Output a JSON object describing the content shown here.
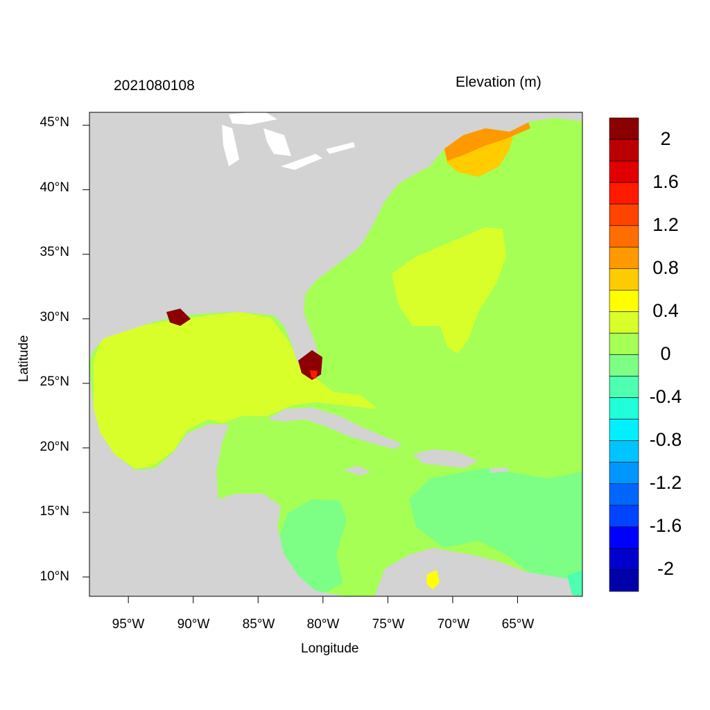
{
  "header": {
    "timestamp": "2021080108",
    "variable_label": "Elevation (m)"
  },
  "axes": {
    "xlabel": "Longitude",
    "ylabel": "Latitude",
    "x_ticks": [
      "95°W",
      "90°W",
      "85°W",
      "80°W",
      "75°W",
      "70°W",
      "65°W"
    ],
    "x_tick_values": [
      -95,
      -90,
      -85,
      -80,
      -75,
      -70,
      -65
    ],
    "y_ticks": [
      "45°N",
      "40°N",
      "35°N",
      "30°N",
      "25°N",
      "20°N",
      "15°N",
      "10°N"
    ],
    "y_tick_values": [
      45,
      40,
      35,
      30,
      25,
      20,
      15,
      10
    ],
    "lon_range": [
      -98,
      -60
    ],
    "lat_range": [
      8.5,
      46
    ]
  },
  "colorbar": {
    "tick_labels": [
      "2",
      "1.6",
      "1.2",
      "0.8",
      "0.4",
      "0",
      "-0.4",
      "-0.8",
      "-1.2",
      "-1.6",
      "-2"
    ],
    "levels_top_to_bottom": [
      "#8b0000",
      "#bb0000",
      "#e00000",
      "#ff1a00",
      "#ff4400",
      "#ff6e00",
      "#ff9900",
      "#ffcc00",
      "#ffff00",
      "#d9ff2a",
      "#a6ff55",
      "#7dff85",
      "#4dffae",
      "#20ffd9",
      "#00f0ff",
      "#00c4ff",
      "#0096ff",
      "#0066ff",
      "#0044ff",
      "#0000ff",
      "#0000cc",
      "#0000aa"
    ]
  },
  "colors": {
    "land": "#d3d3d3",
    "ocean_base": "#a6ff55",
    "gulf": "#d9ff2a",
    "caribbean_low": "#7dff85",
    "positive_high": "#8b0000",
    "gulf_of_maine": "#ff9900"
  }
}
